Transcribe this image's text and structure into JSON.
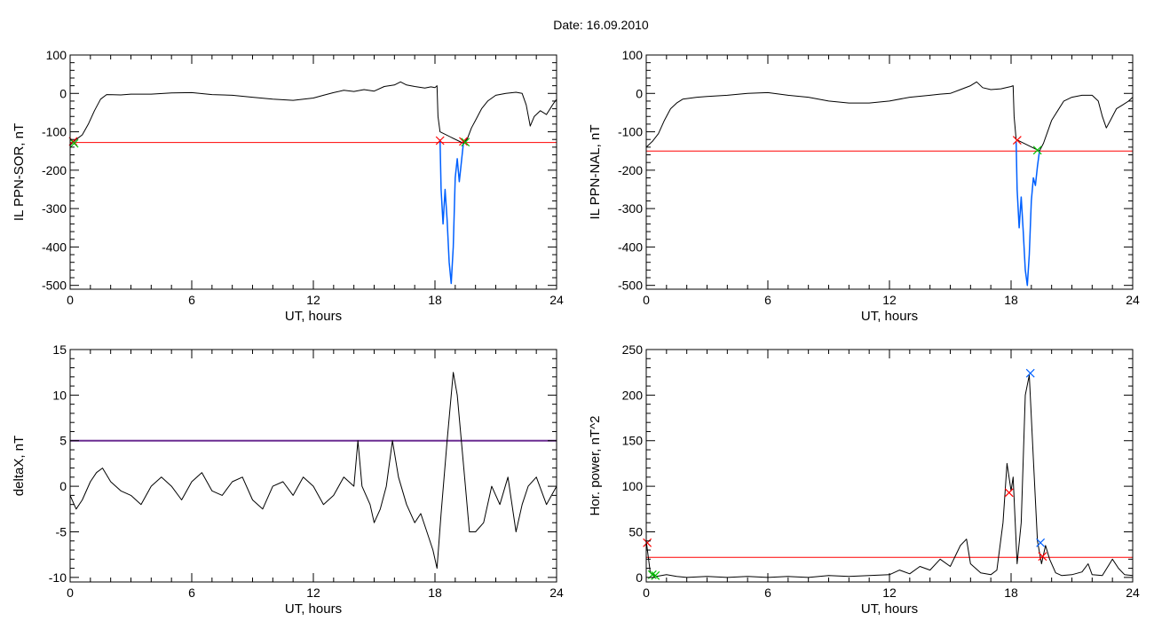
{
  "figure": {
    "title": "Date:  16.09.2010"
  },
  "chart_data": [
    {
      "id": "p1",
      "type": "line",
      "xlabel": "UT, hours",
      "ylabel": "IL PPN-SOR, nT",
      "xlim": [
        0,
        24
      ],
      "ylim": [
        -510,
        100
      ],
      "xticks": [
        0,
        6,
        12,
        18,
        24
      ],
      "yticks": [
        100,
        0,
        -100,
        -200,
        -300,
        -400,
        -500
      ],
      "threshold": {
        "y": -128,
        "color": "#ff0000"
      },
      "series": [
        {
          "color": "#000000",
          "points": [
            [
              0,
              -135
            ],
            [
              0.3,
              -120
            ],
            [
              0.6,
              -108
            ],
            [
              0.9,
              -80
            ],
            [
              1.2,
              -45
            ],
            [
              1.5,
              -15
            ],
            [
              1.8,
              -3
            ],
            [
              2.5,
              -4
            ],
            [
              3,
              -2
            ],
            [
              4,
              -2
            ],
            [
              5,
              1
            ],
            [
              6,
              2
            ],
            [
              7,
              -3
            ],
            [
              8,
              -5
            ],
            [
              9,
              -10
            ],
            [
              10,
              -15
            ],
            [
              11,
              -18
            ],
            [
              12,
              -12
            ],
            [
              12.5,
              -5
            ],
            [
              13,
              2
            ],
            [
              13.5,
              8
            ],
            [
              14,
              5
            ],
            [
              14.5,
              10
            ],
            [
              15,
              6
            ],
            [
              15.5,
              18
            ],
            [
              16,
              22
            ],
            [
              16.3,
              30
            ],
            [
              16.6,
              22
            ],
            [
              17,
              18
            ],
            [
              17.5,
              14
            ],
            [
              17.8,
              17
            ],
            [
              18,
              15
            ],
            [
              18.1,
              20
            ],
            [
              18.15,
              -60
            ],
            [
              18.25,
              -100
            ],
            [
              19.4,
              -130
            ],
            [
              19.6,
              -118
            ],
            [
              19.8,
              -90
            ],
            [
              20,
              -70
            ],
            [
              20.3,
              -40
            ],
            [
              20.6,
              -20
            ],
            [
              21,
              -5
            ],
            [
              21.5,
              0
            ],
            [
              22,
              3
            ],
            [
              22.3,
              0
            ],
            [
              22.5,
              -30
            ],
            [
              22.7,
              -85
            ],
            [
              22.9,
              -60
            ],
            [
              23.2,
              -45
            ],
            [
              23.5,
              -55
            ],
            [
              23.8,
              -30
            ],
            [
              24,
              -15
            ]
          ]
        },
        {
          "color": "#0060ff",
          "points": [
            [
              18.25,
              -120
            ],
            [
              18.3,
              -250
            ],
            [
              18.4,
              -340
            ],
            [
              18.5,
              -250
            ],
            [
              18.6,
              -330
            ],
            [
              18.7,
              -440
            ],
            [
              18.8,
              -495
            ],
            [
              18.9,
              -400
            ],
            [
              19.0,
              -220
            ],
            [
              19.1,
              -170
            ],
            [
              19.2,
              -230
            ],
            [
              19.3,
              -180
            ],
            [
              19.4,
              -130
            ]
          ]
        }
      ],
      "markers": [
        {
          "x": 0.15,
          "y": -125,
          "color": "#ff0000"
        },
        {
          "x": 0.2,
          "y": -130,
          "color": "#00c000"
        },
        {
          "x": 18.25,
          "y": -123,
          "color": "#ff0000"
        },
        {
          "x": 19.4,
          "y": -125,
          "color": "#ff0000"
        },
        {
          "x": 19.5,
          "y": -127,
          "color": "#00c000"
        }
      ]
    },
    {
      "id": "p2",
      "type": "line",
      "xlabel": "UT, hours",
      "ylabel": "IL PPN-NAL, nT",
      "xlim": [
        0,
        24
      ],
      "ylim": [
        -510,
        100
      ],
      "xticks": [
        0,
        6,
        12,
        18,
        24
      ],
      "yticks": [
        100,
        0,
        -100,
        -200,
        -300,
        -400,
        -500
      ],
      "threshold": {
        "y": -150,
        "color": "#ff0000"
      },
      "series": [
        {
          "color": "#000000",
          "points": [
            [
              0,
              -140
            ],
            [
              0.3,
              -125
            ],
            [
              0.6,
              -105
            ],
            [
              0.9,
              -70
            ],
            [
              1.2,
              -40
            ],
            [
              1.5,
              -25
            ],
            [
              1.8,
              -15
            ],
            [
              2.5,
              -10
            ],
            [
              3,
              -8
            ],
            [
              4,
              -5
            ],
            [
              5,
              0
            ],
            [
              6,
              2
            ],
            [
              7,
              -5
            ],
            [
              8,
              -10
            ],
            [
              9,
              -20
            ],
            [
              10,
              -25
            ],
            [
              11,
              -25
            ],
            [
              12,
              -20
            ],
            [
              13,
              -10
            ],
            [
              14,
              -5
            ],
            [
              14.5,
              -2
            ],
            [
              15,
              0
            ],
            [
              15.5,
              10
            ],
            [
              16,
              20
            ],
            [
              16.3,
              30
            ],
            [
              16.6,
              15
            ],
            [
              17,
              10
            ],
            [
              17.5,
              12
            ],
            [
              18,
              18
            ],
            [
              18.1,
              20
            ],
            [
              18.15,
              -60
            ],
            [
              18.25,
              -120
            ],
            [
              19.4,
              -150
            ],
            [
              19.6,
              -130
            ],
            [
              19.8,
              -100
            ],
            [
              20,
              -70
            ],
            [
              20.3,
              -45
            ],
            [
              20.6,
              -20
            ],
            [
              21,
              -10
            ],
            [
              21.5,
              -5
            ],
            [
              22,
              -5
            ],
            [
              22.3,
              -20
            ],
            [
              22.5,
              -60
            ],
            [
              22.7,
              -90
            ],
            [
              22.9,
              -70
            ],
            [
              23.2,
              -40
            ],
            [
              23.5,
              -30
            ],
            [
              23.8,
              -20
            ],
            [
              24,
              -10
            ]
          ]
        },
        {
          "color": "#0060ff",
          "points": [
            [
              18.25,
              -125
            ],
            [
              18.3,
              -250
            ],
            [
              18.4,
              -350
            ],
            [
              18.5,
              -270
            ],
            [
              18.6,
              -360
            ],
            [
              18.7,
              -460
            ],
            [
              18.8,
              -500
            ],
            [
              18.9,
              -420
            ],
            [
              19.0,
              -280
            ],
            [
              19.1,
              -220
            ],
            [
              19.2,
              -240
            ],
            [
              19.3,
              -190
            ],
            [
              19.4,
              -150
            ]
          ]
        }
      ],
      "markers": [
        {
          "x": 18.3,
          "y": -122,
          "color": "#ff0000"
        },
        {
          "x": 19.3,
          "y": -148,
          "color": "#00c000"
        }
      ]
    },
    {
      "id": "p3",
      "type": "line",
      "xlabel": "UT, hours",
      "ylabel": "deltaX, nT",
      "xlim": [
        0,
        24
      ],
      "ylim": [
        -10.5,
        15
      ],
      "xticks": [
        0,
        6,
        12,
        18,
        24
      ],
      "yticks": [
        15,
        10,
        5,
        0,
        -5,
        -10
      ],
      "threshold": {
        "y": 5,
        "color": "#6a2c91"
      },
      "series": [
        {
          "color": "#000000",
          "points": [
            [
              0,
              -1
            ],
            [
              0.3,
              -2.5
            ],
            [
              0.6,
              -1.5
            ],
            [
              1,
              0.5
            ],
            [
              1.3,
              1.5
            ],
            [
              1.6,
              2.0
            ],
            [
              2,
              0.5
            ],
            [
              2.5,
              -0.5
            ],
            [
              3,
              -1.0
            ],
            [
              3.5,
              -2.0
            ],
            [
              4,
              0
            ],
            [
              4.5,
              1
            ],
            [
              5,
              0
            ],
            [
              5.5,
              -1.5
            ],
            [
              6,
              0.5
            ],
            [
              6.5,
              1.5
            ],
            [
              7,
              -0.5
            ],
            [
              7.5,
              -1
            ],
            [
              8,
              0.5
            ],
            [
              8.5,
              1
            ],
            [
              9,
              -1.5
            ],
            [
              9.5,
              -2.5
            ],
            [
              10,
              0
            ],
            [
              10.5,
              0.5
            ],
            [
              11,
              -1
            ],
            [
              11.5,
              1
            ],
            [
              12,
              0
            ],
            [
              12.5,
              -2
            ],
            [
              13,
              -1
            ],
            [
              13.5,
              1
            ],
            [
              14,
              0
            ],
            [
              14.2,
              5
            ],
            [
              14.4,
              0
            ],
            [
              14.8,
              -2
            ],
            [
              15,
              -4
            ],
            [
              15.3,
              -2.5
            ],
            [
              15.6,
              0
            ],
            [
              15.9,
              5
            ],
            [
              16.2,
              1
            ],
            [
              16.6,
              -2
            ],
            [
              17,
              -4
            ],
            [
              17.3,
              -3
            ],
            [
              17.6,
              -5
            ],
            [
              17.9,
              -7
            ],
            [
              18.1,
              -9
            ],
            [
              18.3,
              -3
            ],
            [
              18.6,
              5
            ],
            [
              18.9,
              12.5
            ],
            [
              19.1,
              10
            ],
            [
              19.3,
              5
            ],
            [
              19.5,
              0
            ],
            [
              19.7,
              -5
            ],
            [
              20,
              -5
            ],
            [
              20.4,
              -4
            ],
            [
              20.8,
              0
            ],
            [
              21.2,
              -2
            ],
            [
              21.6,
              1
            ],
            [
              22,
              -5
            ],
            [
              22.3,
              -2
            ],
            [
              22.6,
              0
            ],
            [
              23,
              1
            ],
            [
              23.5,
              -2
            ],
            [
              24,
              0
            ]
          ]
        }
      ],
      "markers": []
    },
    {
      "id": "p4",
      "type": "line",
      "xlabel": "UT, hours",
      "ylabel": "Hor. power, nT^2",
      "xlim": [
        0,
        24
      ],
      "ylim": [
        -5,
        250
      ],
      "xticks": [
        0,
        6,
        12,
        18,
        24
      ],
      "yticks": [
        250,
        200,
        150,
        100,
        50,
        0
      ],
      "threshold": {
        "y": 22,
        "color": "#ff0000"
      },
      "series": [
        {
          "color": "#000000",
          "points": [
            [
              0,
              40
            ],
            [
              0.2,
              5
            ],
            [
              0.5,
              1
            ],
            [
              1,
              3
            ],
            [
              1.5,
              1
            ],
            [
              2,
              0
            ],
            [
              3,
              1
            ],
            [
              4,
              0
            ],
            [
              5,
              1
            ],
            [
              6,
              0
            ],
            [
              7,
              1
            ],
            [
              8,
              0
            ],
            [
              9,
              2
            ],
            [
              10,
              1
            ],
            [
              11,
              2
            ],
            [
              12,
              3
            ],
            [
              12.5,
              8
            ],
            [
              13,
              4
            ],
            [
              13.5,
              12
            ],
            [
              14,
              8
            ],
            [
              14.5,
              20
            ],
            [
              15,
              12
            ],
            [
              15.5,
              35
            ],
            [
              15.8,
              42
            ],
            [
              16,
              15
            ],
            [
              16.5,
              5
            ],
            [
              17,
              3
            ],
            [
              17.3,
              8
            ],
            [
              17.6,
              60
            ],
            [
              17.8,
              125
            ],
            [
              18.0,
              95
            ],
            [
              18.1,
              110
            ],
            [
              18.3,
              15
            ],
            [
              18.5,
              60
            ],
            [
              18.7,
              200
            ],
            [
              18.9,
              222
            ],
            [
              19.1,
              130
            ],
            [
              19.3,
              40
            ],
            [
              19.5,
              15
            ],
            [
              19.7,
              35
            ],
            [
              19.9,
              20
            ],
            [
              20.2,
              5
            ],
            [
              20.5,
              2
            ],
            [
              21,
              3
            ],
            [
              21.5,
              6
            ],
            [
              21.8,
              15
            ],
            [
              22,
              3
            ],
            [
              22.5,
              2
            ],
            [
              23,
              20
            ],
            [
              23.3,
              10
            ],
            [
              23.6,
              3
            ],
            [
              24,
              2
            ]
          ]
        }
      ],
      "markers": [
        {
          "x": 0.05,
          "y": 38,
          "color": "#ff0000"
        },
        {
          "x": 0.3,
          "y": 3,
          "color": "#00c000"
        },
        {
          "x": 0.45,
          "y": 2,
          "color": "#00c000"
        },
        {
          "x": 17.9,
          "y": 93,
          "color": "#ff0000"
        },
        {
          "x": 18.95,
          "y": 224,
          "color": "#0060ff"
        },
        {
          "x": 19.45,
          "y": 38,
          "color": "#0060ff"
        },
        {
          "x": 19.55,
          "y": 23,
          "color": "#ff0000"
        }
      ]
    }
  ]
}
